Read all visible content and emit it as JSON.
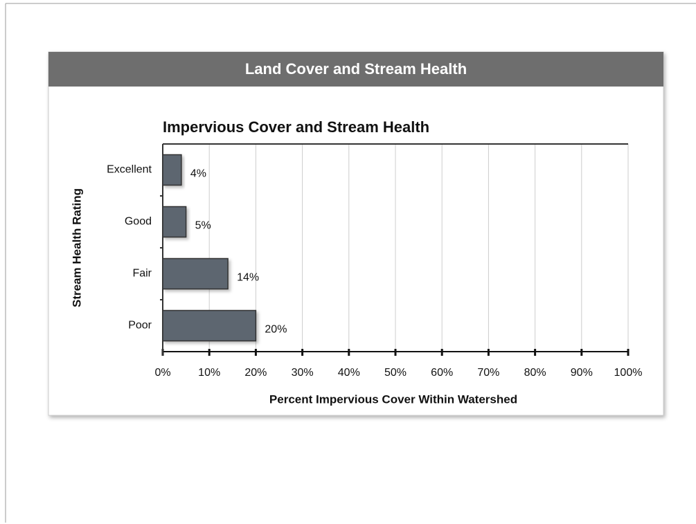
{
  "header": {
    "title": "Land Cover and Stream Health"
  },
  "chart_data": {
    "type": "hbar",
    "title": "Impervious Cover and Stream Health",
    "ylabel": "Stream Health Rating",
    "xlabel": "Percent Impervious Cover Within Watershed",
    "categories": [
      "Excellent",
      "Good",
      "Fair",
      "Poor"
    ],
    "values": [
      4,
      5,
      14,
      20
    ],
    "value_labels": [
      "4%",
      "5%",
      "14%",
      "20%"
    ],
    "color": "#5d6670",
    "xlim": [
      0,
      100
    ],
    "xticks": [
      {
        "value": 0,
        "label": "0%"
      },
      {
        "value": 10,
        "label": "10%"
      },
      {
        "value": 20,
        "label": "20%"
      },
      {
        "value": 30,
        "label": "30%"
      },
      {
        "value": 40,
        "label": "40%"
      },
      {
        "value": 50,
        "label": "50%"
      },
      {
        "value": 60,
        "label": "60%"
      },
      {
        "value": 70,
        "label": "70%"
      },
      {
        "value": 80,
        "label": "80%"
      },
      {
        "value": 90,
        "label": "90%"
      },
      {
        "value": 100,
        "label": "100%"
      }
    ],
    "grid": true
  }
}
